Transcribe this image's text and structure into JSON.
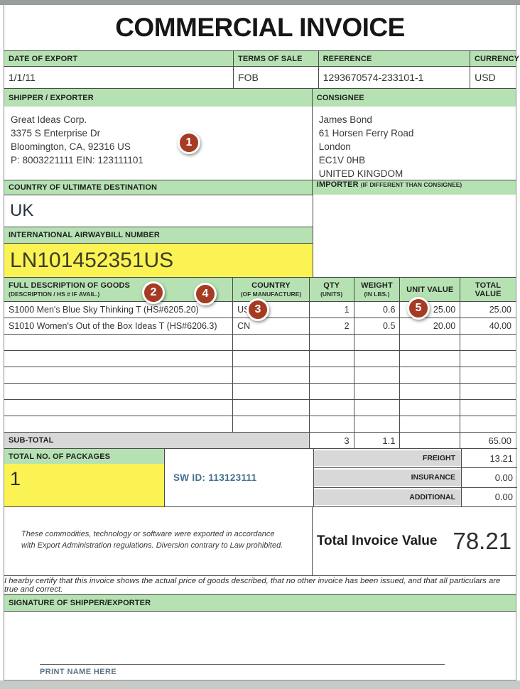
{
  "page": {
    "title": "COMMERCIAL INVOICE"
  },
  "top": {
    "date_label": "DATE OF EXPORT",
    "date_value": "1/1/11",
    "terms_label": "TERMS OF SALE",
    "terms_value": "FOB",
    "reference_label": "REFERENCE",
    "reference_value": "1293670574-233101-1",
    "currency_label": "CURRENCY",
    "currency_value": "USD"
  },
  "parties": {
    "shipper_label": "SHIPPER / EXPORTER",
    "shipper_lines": {
      "0": "Great Ideas Corp.",
      "1": "3375 S Enterprise Dr",
      "2": "Bloomington, CA, 92316 US",
      "3": "P: 8003221111 EIN: 123111101"
    },
    "consignee_label": "CONSIGNEE",
    "consignee_lines": {
      "0": "James Bond",
      "1": "61 Horsen Ferry Road",
      "2": "London",
      "3": "EC1V 0HB",
      "4": "UNITED KINGDOM"
    }
  },
  "destination": {
    "label": "COUNTRY OF ULTIMATE DESTINATION",
    "value": "UK"
  },
  "importer": {
    "label": "IMPORTER",
    "label_suffix": "(IF DIFFERENT THAN CONSIGNEE)"
  },
  "airwaybill": {
    "label": "INTERNATIONAL AIRWAYBILL NUMBER",
    "value": "LN101452351US"
  },
  "goods": {
    "headers": {
      "description": "FULL DESCRIPTION OF GOODS",
      "description_sub": "(DESCRIPTION / HS # IF AVAIL.)",
      "country": "COUNTRY",
      "country_sub": "(OF MANUFACTURE)",
      "qty": "QTY",
      "qty_sub": "(UNITS)",
      "weight": "WEIGHT",
      "weight_sub": "(IN LBS.)",
      "unit_value": "UNIT VALUE",
      "total_value": "TOTAL VALUE"
    },
    "rows": {
      "0": {
        "description": "S1000 Men's Blue Sky Thinking T (HS#6205.20)",
        "country": "US",
        "qty": "1",
        "weight": "0.6",
        "unit_value": "25.00",
        "total_value": "25.00"
      },
      "1": {
        "description": "S1010 Women's Out of the Box Ideas T (HS#6206.3)",
        "country": "CN",
        "qty": "2",
        "weight": "0.5",
        "unit_value": "20.00",
        "total_value": "40.00"
      }
    },
    "empty_row_count": 6,
    "subtotal": {
      "label": "SUB-TOTAL",
      "qty": "3",
      "weight": "1.1",
      "unit_value": "",
      "total_value": "65.00"
    }
  },
  "packages": {
    "label": "TOTAL NO. OF PACKAGES",
    "value": "1",
    "sw_id": "SW ID:  113123111"
  },
  "charges": {
    "0": {
      "label": "FREIGHT",
      "value": "13.21"
    },
    "1": {
      "label": "INSURANCE",
      "value": "0.00"
    },
    "2": {
      "label": "ADDITIONAL",
      "value": "0.00"
    }
  },
  "totals": {
    "compliance_text": "These commodities, technology or software were exported in accordance with Export Administration regulations.  Diversion contrary to Law prohibited.",
    "total_label": "Total Invoice Value",
    "total_value": "78.21"
  },
  "certification": "I hearby certify that this invoice shows the actual price of goods described, that no other invoice has been issued, and that all particulars are true and correct.",
  "signature": {
    "label": "SIGNATURE OF SHIPPER/EXPORTER",
    "print_name": "PRINT NAME HERE"
  },
  "annotations": {
    "0": {
      "label": "1"
    },
    "1": {
      "label": "2"
    },
    "2": {
      "label": "3"
    },
    "3": {
      "label": "4"
    },
    "4": {
      "label": "5"
    }
  },
  "colors": {
    "header_green": "#b6e2b3",
    "highlight_yellow": "#fbf353",
    "subtotal_gray": "#d8d8d8",
    "marker_red": "#a63b24"
  }
}
